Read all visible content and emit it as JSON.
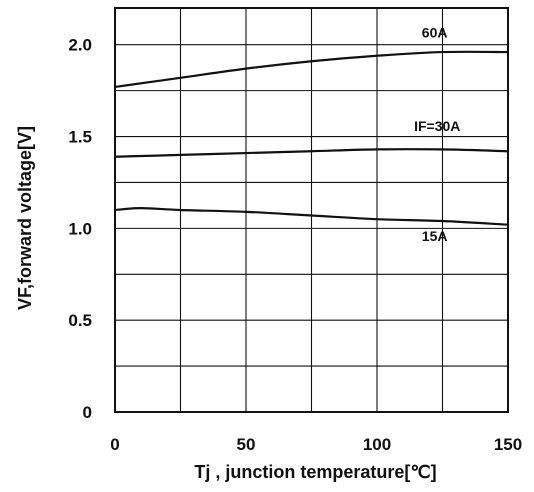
{
  "chart_data": {
    "type": "line",
    "title": "",
    "xlabel": "Tj , junction temperature[℃]",
    "ylabel": "VF,forward voltage[V]",
    "xlim": [
      0,
      150
    ],
    "ylim": [
      0,
      2.2
    ],
    "xticks": [
      0,
      25,
      50,
      75,
      100,
      125,
      150
    ],
    "yticks": [
      0,
      0.25,
      0.5,
      0.75,
      1.0,
      1.25,
      1.5,
      1.75,
      2.0,
      2.25
    ],
    "xtick_labels": [
      {
        "value": 0,
        "label": "0"
      },
      {
        "value": 50,
        "label": "50"
      },
      {
        "value": 100,
        "label": "100"
      },
      {
        "value": 150,
        "label": "150"
      }
    ],
    "ytick_labels": [
      {
        "value": 0,
        "label": "0"
      },
      {
        "value": 0.5,
        "label": "0.5"
      },
      {
        "value": 1.0,
        "label": "1.0"
      },
      {
        "value": 1.5,
        "label": "1.5"
      },
      {
        "value": 2.0,
        "label": "2.0"
      }
    ],
    "grid": true,
    "legend": "none",
    "series": [
      {
        "name": "60A",
        "color": "#111111",
        "label_anchor": {
          "x": 122,
          "y": 2.04
        },
        "x": [
          0,
          25,
          50,
          75,
          100,
          125,
          150
        ],
        "y": [
          1.77,
          1.82,
          1.87,
          1.91,
          1.94,
          1.96,
          1.96
        ]
      },
      {
        "name": "IF=30A",
        "color": "#111111",
        "label_anchor": {
          "x": 123,
          "y": 1.53
        },
        "x": [
          0,
          25,
          50,
          75,
          100,
          125,
          150
        ],
        "y": [
          1.39,
          1.4,
          1.41,
          1.42,
          1.43,
          1.43,
          1.42
        ]
      },
      {
        "name": "15A",
        "color": "#111111",
        "label_anchor": {
          "x": 122,
          "y": 0.93
        },
        "x": [
          0,
          10,
          25,
          50,
          75,
          100,
          125,
          150
        ],
        "y": [
          1.1,
          1.11,
          1.1,
          1.09,
          1.07,
          1.05,
          1.04,
          1.02
        ]
      }
    ]
  }
}
